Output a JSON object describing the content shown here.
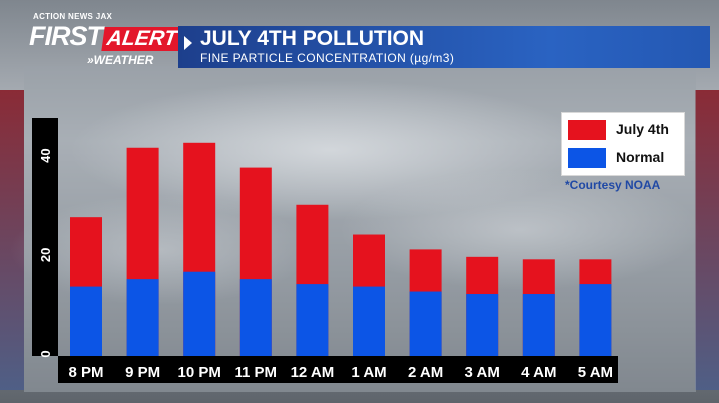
{
  "brand": {
    "network": "ACTION NEWS JAX",
    "first": "FIRST",
    "alert": "ALERT",
    "weather": "»WEATHER"
  },
  "header": {
    "title": "JULY 4TH POLLUTION",
    "subtitle": "FINE PARTICLE CONCENTRATION (µg/m3)"
  },
  "courtesy": "*Courtesy NOAA",
  "colors": {
    "july4": "#e5121e",
    "normal": "#0c55e6",
    "brand_red": "#e3172b",
    "title_blue": "#2a63c2"
  },
  "chart_data": {
    "type": "bar",
    "categories": [
      "8 PM",
      "9 PM",
      "10 PM",
      "11 PM",
      "12 AM",
      "1 AM",
      "2 AM",
      "3 AM",
      "4 AM",
      "5 AM"
    ],
    "series": [
      {
        "name": "Normal",
        "values": [
          14,
          15.5,
          17,
          15.5,
          14.5,
          14,
          13,
          12.5,
          12.5,
          14.5
        ]
      },
      {
        "name": "July 4th",
        "values": [
          28,
          42,
          43,
          38,
          30.5,
          24.5,
          21.5,
          20,
          19.5,
          19.5
        ]
      }
    ],
    "overlap": true,
    "yticks": [
      0,
      20,
      40
    ],
    "ylim": [
      0,
      48
    ],
    "grid": false,
    "legend_position": "top-right"
  }
}
